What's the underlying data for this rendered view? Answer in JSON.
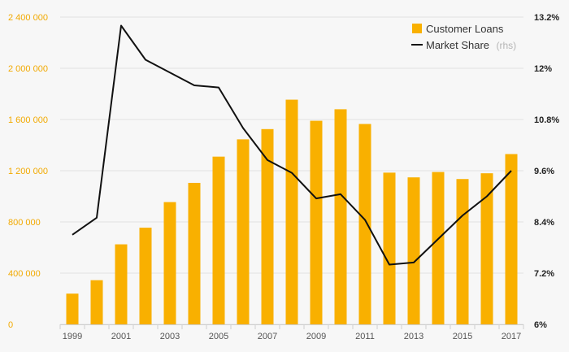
{
  "chart_data": {
    "type": "bar",
    "x": [
      1999,
      2000,
      2001,
      2002,
      2003,
      2004,
      2005,
      2006,
      2007,
      2008,
      2009,
      2010,
      2011,
      2012,
      2013,
      2014,
      2015,
      2016,
      2017
    ],
    "series": [
      {
        "name": "Customer Loans",
        "type": "bar",
        "axis": "left",
        "color": "#f9b000",
        "values": [
          240000,
          345000,
          625000,
          755000,
          955000,
          1105000,
          1310000,
          1445000,
          1525000,
          1755000,
          1590000,
          1680000,
          1565000,
          1185000,
          1148000,
          1190000,
          1135000,
          1180000,
          1330000
        ]
      },
      {
        "name": "Market Share",
        "name_suffix": "(rhs)",
        "type": "line",
        "axis": "right",
        "color": "#111111",
        "values": [
          8.1,
          8.5,
          13.0,
          12.2,
          11.9,
          11.6,
          11.55,
          10.6,
          9.85,
          9.55,
          8.95,
          9.05,
          8.45,
          7.4,
          7.45,
          8.0,
          8.55,
          9.0,
          9.6
        ]
      }
    ],
    "y_left": {
      "range": [
        0,
        2400000
      ],
      "ticks": [
        0,
        400000,
        800000,
        1200000,
        1600000,
        2000000,
        2400000
      ],
      "tick_labels": [
        "0",
        "400 000",
        "800 000",
        "1 200 000",
        "1 600 000",
        "2 000 000",
        "2 400 000"
      ]
    },
    "y_right": {
      "range": [
        6,
        13.2
      ],
      "ticks": [
        6,
        7.2,
        8.4,
        9.6,
        10.8,
        12,
        13.2
      ],
      "tick_labels": [
        "6%",
        "7.2%",
        "8.4%",
        "9.6%",
        "10.8%",
        "12%",
        "13.2%"
      ]
    },
    "x_tick_labels": [
      "1999",
      "2001",
      "2003",
      "2005",
      "2007",
      "2009",
      "2011",
      "2013",
      "2015",
      "2017"
    ],
    "grid": true,
    "legend": "top-right"
  }
}
